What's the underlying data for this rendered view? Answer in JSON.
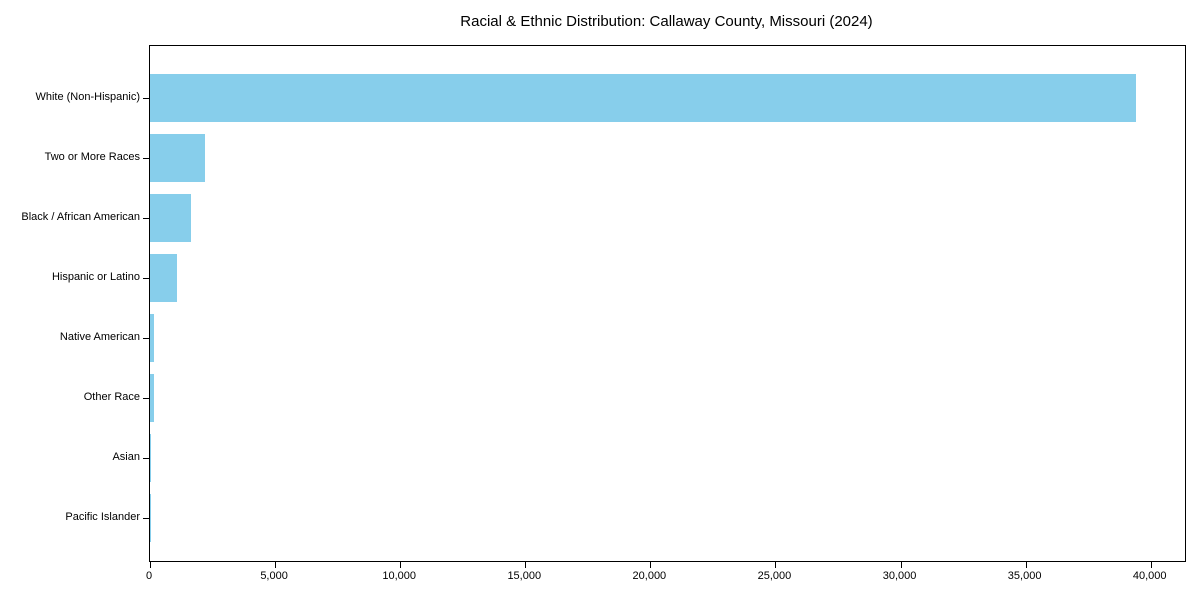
{
  "chart_data": {
    "type": "bar",
    "orientation": "horizontal",
    "title": "Racial & Ethnic Distribution: Callaway County, Missouri (2024)",
    "categories": [
      "White (Non-Hispanic)",
      "Two or More Races",
      "Black / African American",
      "Hispanic or Latino",
      "Native American",
      "Other Race",
      "Asian",
      "Pacific Islander"
    ],
    "values": [
      39400,
      2200,
      1650,
      1080,
      170,
      160,
      35,
      10
    ],
    "bar_color": "#87CEEB",
    "xlabel": "",
    "ylabel": "",
    "xlim": [
      0,
      41370
    ],
    "x_ticks": [
      0,
      5000,
      10000,
      15000,
      20000,
      25000,
      30000,
      35000,
      40000
    ],
    "x_tick_labels": [
      "0",
      "5,000",
      "10,000",
      "15,000",
      "20,000",
      "25,000",
      "30,000",
      "35,000",
      "40,000"
    ],
    "grid": false,
    "legend": null,
    "frame": "box",
    "background_color": "#ffffff",
    "text_color": "#000000"
  }
}
